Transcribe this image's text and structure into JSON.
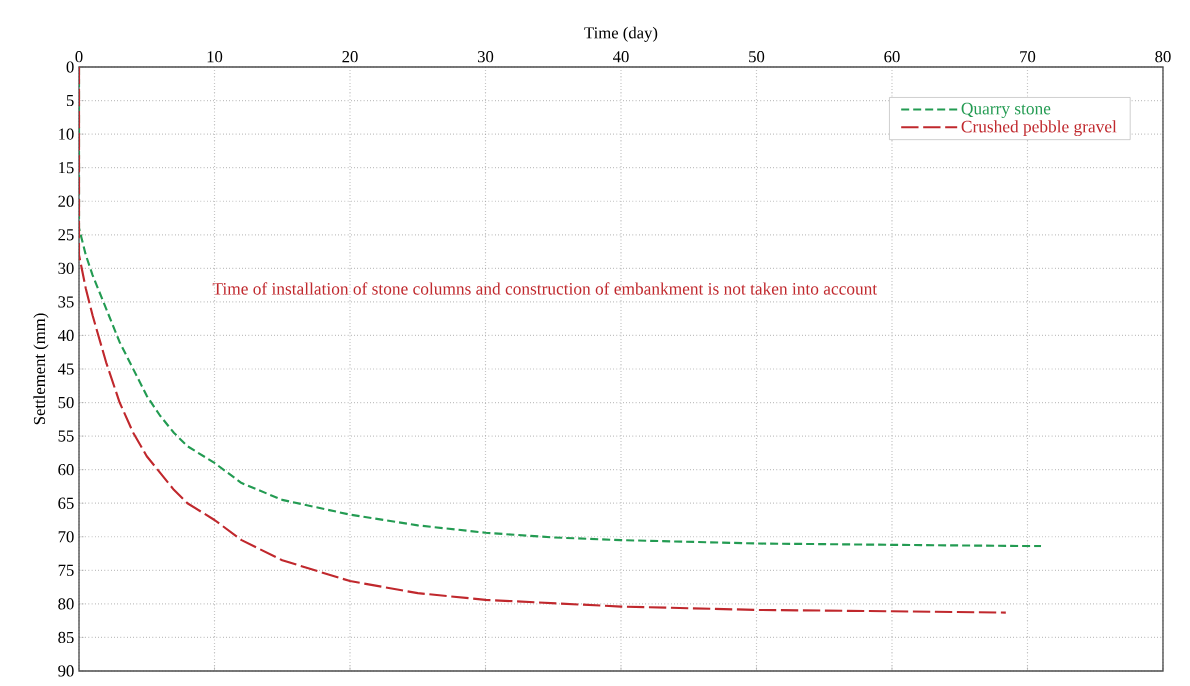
{
  "chart_data": {
    "type": "line",
    "xlabel": "Time (day)",
    "ylabel": "Settlement (mm)",
    "xlim": [
      0,
      80
    ],
    "xticks": [
      0,
      10,
      20,
      30,
      40,
      50,
      60,
      70,
      80
    ],
    "ylim": [
      90,
      0
    ],
    "yticks": [
      0,
      5,
      10,
      15,
      20,
      25,
      30,
      35,
      40,
      45,
      50,
      55,
      60,
      65,
      70,
      75,
      80,
      85,
      90
    ],
    "grid": true,
    "legend": "top right",
    "line_style": "dashed",
    "marker": "none",
    "annotations": [
      "Time of installation of stone columns and construction of embankment is not taken into account"
    ],
    "series": [
      {
        "name": "Quarry stone",
        "color": "#239b52",
        "x": [
          0,
          0,
          0.5,
          1,
          2,
          3,
          4,
          5,
          6,
          7,
          8,
          10,
          12,
          15,
          20,
          25,
          30,
          35,
          40,
          50,
          60,
          71
        ],
        "values": [
          0,
          24,
          28,
          31,
          36,
          41,
          45,
          49,
          52,
          54.5,
          56.5,
          59,
          62,
          64.5,
          66.7,
          68.3,
          69.4,
          70.1,
          70.5,
          71,
          71.2,
          71.4
        ]
      },
      {
        "name": "Crushed pebble gravel",
        "color": "#c0282d",
        "x": [
          0,
          0,
          0.5,
          1,
          2,
          3,
          4,
          5,
          7,
          8,
          10,
          12,
          15,
          20,
          25,
          30,
          40,
          50,
          60,
          68.4
        ],
        "values": [
          0,
          28,
          33,
          37,
          44,
          50,
          54.5,
          58,
          63,
          65,
          67.5,
          70.5,
          73.5,
          76.6,
          78.4,
          79.4,
          80.4,
          80.9,
          81.1,
          81.3
        ]
      }
    ]
  }
}
